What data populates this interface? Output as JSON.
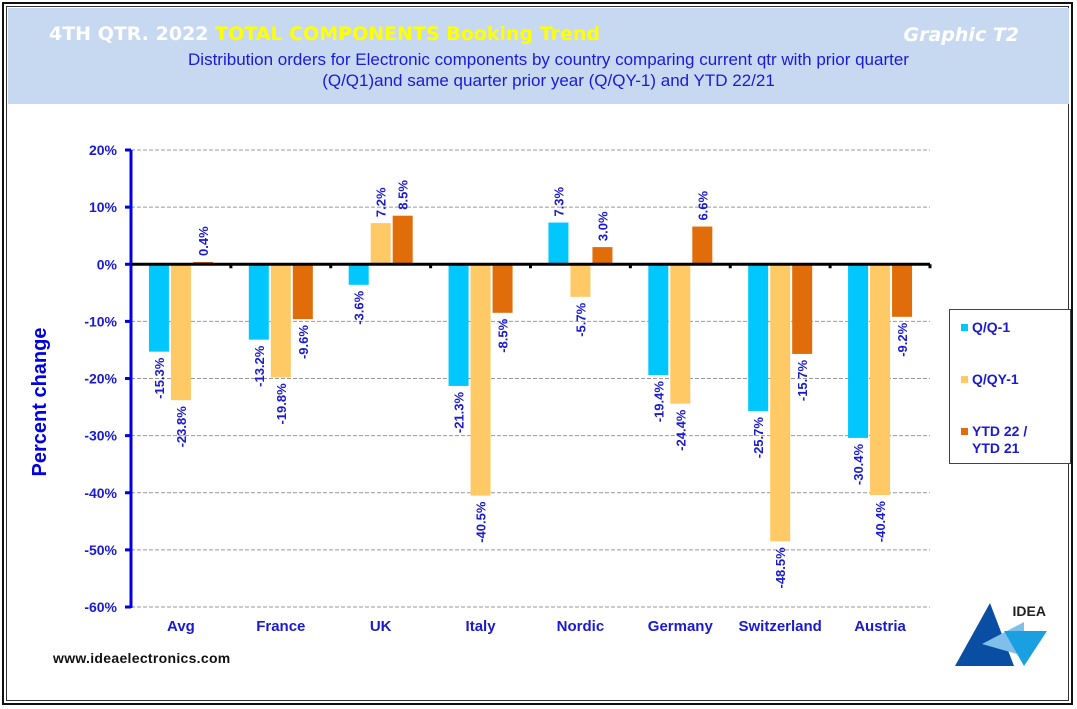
{
  "header": {
    "title_prefix": "4TH QTR. 2022",
    "title_highlight": "TOTAL COMPONENTS Booking Trend",
    "graphic_id": "Graphic T2",
    "subtitle_line1": "Distribution  orders for Electronic components by country comparing  current qtr with prior quarter",
    "subtitle_line2": "(Q/Q1)and  same quarter prior year (Q/QY-1)  and YTD  22/21"
  },
  "colors": {
    "header_bg": "#c6d9f0",
    "axis_blue": "#0000e0",
    "label_blue": "#1a1ad0",
    "series_qq1": "#00c8ff",
    "series_qqy1": "#ffc966",
    "series_ytd": "#e06c0a",
    "title_yellow": "#ffff00"
  },
  "chart_data": {
    "type": "bar",
    "title": "4TH QTR. 2022 TOTAL COMPONENTS Booking Trend",
    "xlabel": "",
    "ylabel": "Percent change",
    "ylim": [
      -60,
      20
    ],
    "yticks": [
      20,
      10,
      0,
      -10,
      -20,
      -30,
      -40,
      -50,
      -60
    ],
    "ytick_labels": [
      "20%",
      "10%",
      "0%",
      "-10%",
      "-20%",
      "-30%",
      "-40%",
      "-50%",
      "-60%"
    ],
    "grid": true,
    "legend_position": "right",
    "categories": [
      "Avg",
      "France",
      "UK",
      "Italy",
      "Nordic",
      "Germany",
      "Switzerland",
      "Austria"
    ],
    "series": [
      {
        "name": "Q/Q-1",
        "values": [
          -15.3,
          -13.2,
          -3.6,
          -21.3,
          7.3,
          -19.4,
          -25.7,
          -30.4
        ],
        "labels": [
          "-15.3%",
          "-13.2%",
          "-3.6%",
          "-21.3%",
          "7.3%",
          "-19.4%",
          "-25.7%",
          "-30.4%"
        ]
      },
      {
        "name": "Q/QY-1",
        "values": [
          -23.8,
          -19.8,
          7.2,
          -40.5,
          -5.7,
          -24.4,
          -48.5,
          -40.4
        ],
        "labels": [
          "-23.8%",
          "-19.8%",
          "7.2%",
          "-40.5%",
          "-5.7%",
          "-24.4%",
          "-48.5%",
          "-40.4%"
        ]
      },
      {
        "name": "YTD 22 / YTD 21",
        "values": [
          0.4,
          -9.6,
          8.5,
          -8.5,
          3.0,
          6.6,
          -15.7,
          -9.2
        ],
        "labels": [
          "0.4%",
          "-9.6%",
          "8.5%",
          "-8.5%",
          "3.0%",
          "6.6%",
          "-15.7%",
          "-9.2%"
        ]
      }
    ]
  },
  "legend": {
    "items": [
      {
        "label_line1": "Q/Q-1",
        "label_line2": ""
      },
      {
        "label_line1": "Q/QY-1",
        "label_line2": ""
      },
      {
        "label_line1": "YTD 22 /",
        "label_line2": "YTD 21"
      }
    ]
  },
  "footer": {
    "website": "www.ideaelectronics.com",
    "logo_text": "IDEA"
  }
}
